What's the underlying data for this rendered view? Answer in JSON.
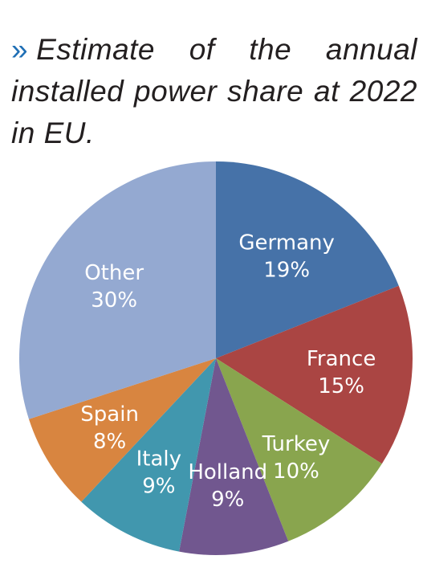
{
  "title": {
    "marker": "»",
    "text": "Estimate of the annual installed power share at 2022 in EU."
  },
  "chart_data": {
    "type": "pie",
    "title": "Estimate of the annual installed power share at 2022 in EU.",
    "slices": [
      {
        "label": "Germany",
        "value": 19,
        "value_label": "19%",
        "color": "#4672a8"
      },
      {
        "label": "France",
        "value": 15,
        "value_label": "15%",
        "color": "#aa4543"
      },
      {
        "label": "Turkey",
        "value": 10,
        "value_label": "10%",
        "color": "#89a54e"
      },
      {
        "label": "Holland",
        "value": 9,
        "value_label": "9%",
        "color": "#71578f"
      },
      {
        "label": "Italy",
        "value": 9,
        "value_label": "9%",
        "color": "#4197ae"
      },
      {
        "label": "Spain",
        "value": 8,
        "value_label": "8%",
        "color": "#d88540"
      },
      {
        "label": "Other",
        "value": 30,
        "value_label": "30%",
        "color": "#94a9d1"
      }
    ],
    "start": "12 o'clock",
    "direction": "clockwise",
    "legend": "none"
  }
}
